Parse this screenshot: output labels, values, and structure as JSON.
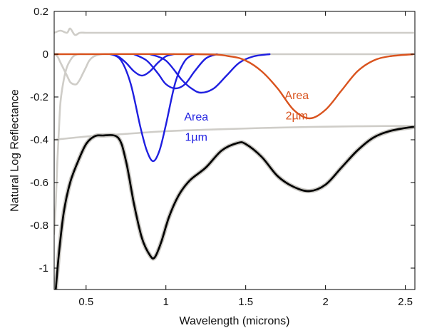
{
  "chart_data": {
    "type": "line",
    "title": "",
    "xlabel": "Wavelength (microns)",
    "ylabel": "Natural Log Reflectance",
    "xlim": [
      0.3,
      2.56
    ],
    "ylim": [
      -1.1,
      0.2
    ],
    "grid": false,
    "x_ticks": [
      0.5,
      1,
      1.5,
      2,
      2.5
    ],
    "x_tick_labels": [
      "0.5",
      "1",
      "1.5",
      "2",
      "2.5"
    ],
    "y_ticks": [
      0.2,
      0,
      -0.2,
      -0.4,
      -0.6,
      -0.8,
      -1
    ],
    "y_tick_labels": [
      "0.2",
      "0",
      "-0.2",
      "-0.4",
      "-0.6",
      "-0.8",
      "-1"
    ],
    "colors": {
      "gray": "#cfcdc8",
      "blue": "#1f1fe0",
      "orange": "#d9531e",
      "black": "#000000"
    },
    "series": [
      {
        "key": "residual",
        "color": "gray",
        "x": [
          0.3,
          0.34,
          0.38,
          0.4,
          0.43,
          0.46,
          0.5,
          0.6,
          0.8,
          1.0,
          1.2,
          1.4,
          1.6,
          1.8,
          2.0,
          2.2,
          2.4,
          2.55
        ],
        "y": [
          0.1,
          0.11,
          0.1,
          0.12,
          0.09,
          0.1,
          0.1,
          0.1,
          0.1,
          0.1,
          0.1,
          0.1,
          0.1,
          0.1,
          0.1,
          0.1,
          0.1,
          0.1
        ]
      },
      {
        "key": "uv_band",
        "color": "gray",
        "x": [
          0.3,
          0.32,
          0.34,
          0.36,
          0.38,
          0.4,
          0.42,
          0.44,
          0.46,
          0.48,
          0.5,
          0.52,
          0.55,
          0.6,
          0.65,
          0.7,
          0.8,
          1.0,
          1.5,
          2.0,
          2.55
        ],
        "y": [
          0,
          -0.01,
          -0.04,
          -0.07,
          -0.1,
          -0.13,
          -0.14,
          -0.14,
          -0.12,
          -0.09,
          -0.06,
          -0.03,
          -0.01,
          0,
          0,
          0,
          0,
          0,
          0,
          0,
          0
        ]
      },
      {
        "key": "continuum_uv",
        "color": "gray",
        "x": [
          0.3,
          0.31,
          0.32,
          0.33,
          0.34,
          0.36,
          0.38,
          0.4,
          0.42,
          0.45,
          0.5,
          0.55
        ],
        "y": [
          -0.84,
          -0.7,
          -0.5,
          -0.35,
          -0.22,
          -0.12,
          -0.06,
          -0.03,
          -0.01,
          0,
          0,
          0
        ]
      },
      {
        "key": "continuum",
        "color": "gray",
        "x": [
          0.3,
          0.5,
          0.7,
          1.0,
          1.3,
          1.6,
          1.9,
          2.2,
          2.55
        ],
        "y": [
          -0.4,
          -0.385,
          -0.375,
          -0.36,
          -0.352,
          -0.345,
          -0.34,
          -0.337,
          -0.335
        ]
      },
      {
        "key": "band_0.85",
        "color": "blue",
        "x": [
          0.65,
          0.7,
          0.75,
          0.8,
          0.85,
          0.9,
          0.95,
          1.0,
          1.05
        ],
        "y": [
          0,
          -0.01,
          -0.04,
          -0.08,
          -0.1,
          -0.08,
          -0.04,
          -0.01,
          0
        ]
      },
      {
        "key": "band_0.93",
        "color": "blue",
        "x": [
          0.66,
          0.72,
          0.78,
          0.84,
          0.88,
          0.92,
          0.96,
          1.0,
          1.06,
          1.12,
          1.18
        ],
        "y": [
          0,
          -0.03,
          -0.14,
          -0.34,
          -0.45,
          -0.5,
          -0.45,
          -0.33,
          -0.13,
          -0.03,
          0
        ]
      },
      {
        "key": "band_1.05",
        "color": "blue",
        "x": [
          0.8,
          0.88,
          0.95,
          1.0,
          1.06,
          1.12,
          1.18,
          1.25,
          1.32
        ],
        "y": [
          0,
          -0.03,
          -0.09,
          -0.14,
          -0.16,
          -0.14,
          -0.08,
          -0.02,
          0
        ]
      },
      {
        "key": "band_1.22",
        "color": "blue",
        "x": [
          0.9,
          1.0,
          1.1,
          1.16,
          1.22,
          1.3,
          1.38,
          1.46,
          1.55,
          1.65
        ],
        "y": [
          0,
          -0.03,
          -0.12,
          -0.16,
          -0.18,
          -0.16,
          -0.1,
          -0.04,
          -0.01,
          0
        ]
      },
      {
        "key": "band_2um",
        "color": "orange",
        "x": [
          0.3,
          1.2,
          1.4,
          1.5,
          1.6,
          1.7,
          1.8,
          1.9,
          2.0,
          2.1,
          2.2,
          2.3,
          2.4,
          2.55
        ],
        "y": [
          0,
          0,
          -0.01,
          -0.03,
          -0.08,
          -0.16,
          -0.26,
          -0.3,
          -0.26,
          -0.17,
          -0.08,
          -0.03,
          -0.01,
          0
        ]
      },
      {
        "key": "spectrum",
        "color": "black",
        "x": [
          0.31,
          0.33,
          0.36,
          0.4,
          0.45,
          0.5,
          0.55,
          0.6,
          0.7,
          0.75,
          0.8,
          0.85,
          0.9,
          0.93,
          0.97,
          1.02,
          1.08,
          1.15,
          1.25,
          1.35,
          1.45,
          1.5,
          1.6,
          1.7,
          1.8,
          1.9,
          2.0,
          2.1,
          2.2,
          2.3,
          2.4,
          2.5,
          2.55
        ],
        "y": [
          -1.1,
          -0.93,
          -0.74,
          -0.6,
          -0.5,
          -0.42,
          -0.385,
          -0.38,
          -0.39,
          -0.5,
          -0.7,
          -0.86,
          -0.94,
          -0.95,
          -0.88,
          -0.76,
          -0.66,
          -0.59,
          -0.53,
          -0.45,
          -0.415,
          -0.42,
          -0.48,
          -0.57,
          -0.62,
          -0.64,
          -0.61,
          -0.53,
          -0.45,
          -0.39,
          -0.36,
          -0.345,
          -0.34
        ]
      }
    ],
    "annotations": [
      {
        "key": "area_1um_line1",
        "text": "Area",
        "color": "blue",
        "x": 1.19,
        "y": -0.31
      },
      {
        "key": "area_1um_line2",
        "text": "1µm",
        "color": "blue",
        "x": 1.19,
        "y": -0.405
      },
      {
        "key": "area_2um_line1",
        "text": "Area",
        "color": "orange",
        "x": 1.82,
        "y": -0.21
      },
      {
        "key": "area_2um_line2",
        "text": "2µm",
        "color": "orange",
        "x": 1.82,
        "y": -0.305
      }
    ]
  }
}
